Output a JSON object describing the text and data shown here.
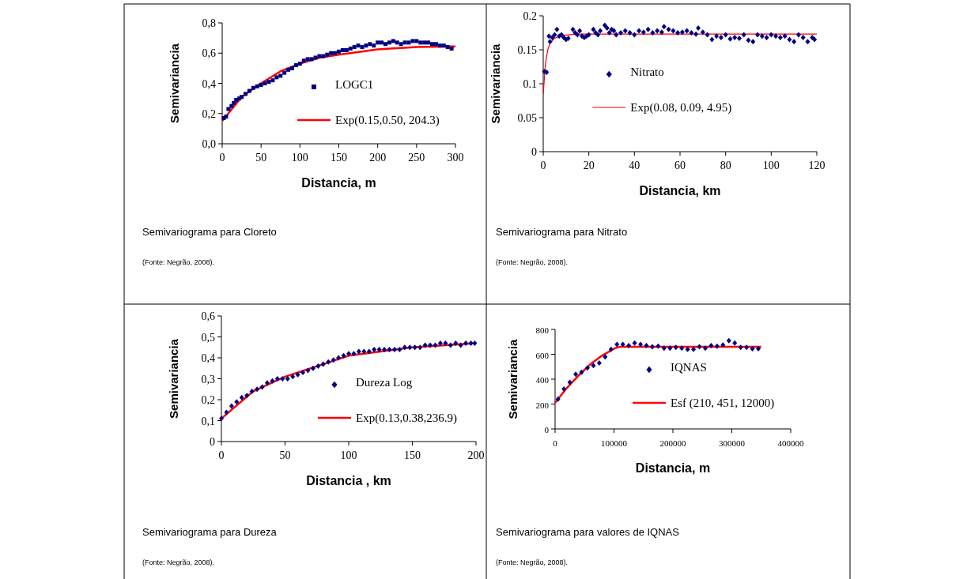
{
  "chart_data": [
    {
      "type": "scatter",
      "xlabel": "Distancia, m",
      "ylabel": "Semivariancia",
      "xlim": [
        0,
        300
      ],
      "ylim": [
        0,
        0.8
      ],
      "xticks": [
        0,
        50,
        100,
        150,
        200,
        250,
        300
      ],
      "yticks": [
        {
          "value": 0,
          "label": "0,0"
        },
        {
          "value": 0.2,
          "label": "0,2"
        },
        {
          "value": 0.4,
          "label": "0,4"
        },
        {
          "value": 0.6,
          "label": "0,6"
        },
        {
          "value": 0.8,
          "label": "0,8"
        }
      ],
      "legend": "bottom right",
      "annotations": [
        "Semivariograma para Cloreto",
        "(Fonte: Negrão, 2008)."
      ],
      "series": [
        {
          "name": "LOGC1",
          "marker": "square",
          "color": "#000080",
          "x": [
            2,
            5,
            8,
            12,
            15,
            18,
            22,
            25,
            30,
            35,
            40,
            45,
            50,
            55,
            60,
            65,
            70,
            75,
            80,
            85,
            90,
            95,
            100,
            105,
            110,
            115,
            120,
            125,
            130,
            135,
            140,
            145,
            150,
            155,
            160,
            165,
            170,
            175,
            180,
            185,
            190,
            195,
            200,
            205,
            210,
            215,
            220,
            225,
            230,
            235,
            240,
            245,
            250,
            255,
            260,
            265,
            270,
            275,
            280,
            285,
            290,
            295
          ],
          "values": [
            0.17,
            0.18,
            0.23,
            0.25,
            0.27,
            0.29,
            0.3,
            0.31,
            0.33,
            0.35,
            0.37,
            0.38,
            0.39,
            0.4,
            0.41,
            0.42,
            0.44,
            0.45,
            0.47,
            0.49,
            0.5,
            0.52,
            0.53,
            0.55,
            0.56,
            0.56,
            0.57,
            0.58,
            0.58,
            0.59,
            0.6,
            0.6,
            0.61,
            0.62,
            0.62,
            0.63,
            0.64,
            0.65,
            0.64,
            0.65,
            0.66,
            0.65,
            0.67,
            0.67,
            0.66,
            0.67,
            0.68,
            0.67,
            0.66,
            0.67,
            0.67,
            0.68,
            0.68,
            0.67,
            0.67,
            0.67,
            0.66,
            0.66,
            0.65,
            0.65,
            0.64,
            0.63
          ]
        },
        {
          "name": "Exp(0.15,0.50, 204.3)",
          "type": "line",
          "color": "#ff0000",
          "x": [
            0,
            25,
            50,
            75,
            100,
            125,
            150,
            200,
            250,
            300
          ],
          "values": [
            0.15,
            0.31,
            0.4,
            0.48,
            0.53,
            0.57,
            0.59,
            0.625,
            0.64,
            0.645
          ]
        }
      ]
    },
    {
      "type": "scatter",
      "xlabel": "Distancia, km",
      "ylabel": "Semivariancia",
      "xlim": [
        0,
        120
      ],
      "ylim": [
        0,
        0.2
      ],
      "xticks": [
        0,
        20,
        40,
        60,
        80,
        100,
        120
      ],
      "yticks": [
        0,
        0.05,
        0.1,
        0.15,
        0.2
      ],
      "legend": "left",
      "annotations": [
        "Semivariograma para Nitrato",
        "(Fonte: Negrão, 2008)."
      ],
      "series": [
        {
          "name": "Nitrato",
          "marker": "diamond",
          "color": "#000080",
          "x": [
            0.5,
            1.5,
            2.5,
            3,
            4,
            5,
            6,
            7,
            8,
            9,
            10,
            11,
            13,
            14,
            15,
            16,
            17,
            18,
            19,
            20,
            22,
            23,
            24,
            25,
            27,
            28,
            29,
            30,
            31,
            32,
            34,
            36,
            38,
            40,
            42,
            44,
            46,
            48,
            50,
            52,
            53,
            55,
            57,
            59,
            61,
            63,
            65,
            67,
            68,
            70,
            72,
            74,
            76,
            78,
            80,
            82,
            84,
            86,
            88,
            90,
            92,
            94,
            96,
            98,
            100,
            102,
            104,
            106,
            108,
            110,
            112,
            114,
            116,
            118,
            119
          ],
          "values": [
            0.118,
            0.117,
            0.17,
            0.162,
            0.168,
            0.172,
            0.18,
            0.17,
            0.172,
            0.168,
            0.165,
            0.167,
            0.18,
            0.175,
            0.172,
            0.178,
            0.17,
            0.168,
            0.17,
            0.172,
            0.18,
            0.175,
            0.172,
            0.178,
            0.186,
            0.182,
            0.175,
            0.18,
            0.178,
            0.172,
            0.175,
            0.178,
            0.175,
            0.172,
            0.178,
            0.176,
            0.18,
            0.175,
            0.178,
            0.176,
            0.184,
            0.18,
            0.178,
            0.175,
            0.176,
            0.178,
            0.175,
            0.173,
            0.182,
            0.176,
            0.172,
            0.165,
            0.17,
            0.168,
            0.172,
            0.166,
            0.168,
            0.167,
            0.172,
            0.164,
            0.162,
            0.172,
            0.17,
            0.168,
            0.172,
            0.17,
            0.168,
            0.17,
            0.165,
            0.162,
            0.172,
            0.168,
            0.162,
            0.168,
            0.165
          ]
        },
        {
          "name": "Exp(0.08, 0.09, 4.95)",
          "type": "line",
          "color": "#ff0000",
          "x": [
            0,
            1,
            2,
            3,
            5,
            8,
            15,
            120
          ],
          "values": [
            0.085,
            0.13,
            0.15,
            0.16,
            0.167,
            0.171,
            0.173,
            0.173
          ]
        }
      ]
    },
    {
      "type": "scatter",
      "xlabel": "Distancia , km",
      "ylabel": "Semivariancia",
      "xlim": [
        0,
        200
      ],
      "ylim": [
        0,
        0.6
      ],
      "xticks": [
        0,
        50,
        100,
        150,
        200
      ],
      "yticks": [
        0,
        {
          "value": 0.1,
          "label": "0,1"
        },
        {
          "value": 0.2,
          "label": "0,2"
        },
        {
          "value": 0.3,
          "label": "0,3"
        },
        {
          "value": 0.4,
          "label": "0,4"
        },
        {
          "value": 0.5,
          "label": "0,5"
        },
        {
          "value": 0.6,
          "label": "0,6"
        }
      ],
      "legend": "bottom right",
      "annotations": [
        "Semivariograma para Dureza",
        "(Fonte: Negrão, 2008)."
      ],
      "series": [
        {
          "name": "Dureza Log",
          "marker": "diamond",
          "color": "#000080",
          "x": [
            0,
            4,
            8,
            12,
            16,
            20,
            24,
            28,
            32,
            36,
            40,
            44,
            48,
            52,
            56,
            60,
            64,
            68,
            72,
            76,
            80,
            84,
            88,
            92,
            96,
            100,
            104,
            108,
            112,
            116,
            120,
            124,
            128,
            132,
            136,
            140,
            144,
            148,
            152,
            156,
            160,
            164,
            168,
            172,
            176,
            180,
            184,
            188,
            192,
            196,
            199
          ],
          "values": [
            0.11,
            0.14,
            0.17,
            0.19,
            0.21,
            0.22,
            0.24,
            0.25,
            0.26,
            0.28,
            0.29,
            0.3,
            0.3,
            0.3,
            0.31,
            0.32,
            0.33,
            0.34,
            0.35,
            0.36,
            0.37,
            0.38,
            0.39,
            0.4,
            0.41,
            0.42,
            0.42,
            0.43,
            0.43,
            0.43,
            0.44,
            0.44,
            0.44,
            0.44,
            0.44,
            0.44,
            0.45,
            0.45,
            0.45,
            0.45,
            0.46,
            0.46,
            0.46,
            0.47,
            0.47,
            0.46,
            0.47,
            0.46,
            0.47,
            0.47,
            0.47
          ]
        },
        {
          "name": "Exp(0.13,0.38,236.9)",
          "type": "line",
          "color": "#ff0000",
          "x": [
            0,
            25,
            50,
            75,
            100,
            125,
            150,
            200
          ],
          "values": [
            0.11,
            0.24,
            0.31,
            0.36,
            0.41,
            0.43,
            0.45,
            0.47
          ]
        }
      ]
    },
    {
      "type": "scatter",
      "xlabel": "Distancia, m",
      "ylabel": "Semivariancia",
      "xlim": [
        0,
        400000
      ],
      "ylim": [
        0,
        800
      ],
      "xticks": [
        0,
        100000,
        200000,
        300000,
        400000
      ],
      "yticks": [
        0,
        200,
        400,
        600,
        800
      ],
      "legend": "right",
      "annotations": [
        "Semivariograma para valores de IQNAS",
        "(Fonte: Negrão, 2008)."
      ],
      "series": [
        {
          "name": "IQNAS",
          "marker": "diamond",
          "color": "#000080",
          "x": [
            5000,
            15000,
            25000,
            35000,
            45000,
            55000,
            65000,
            75000,
            85000,
            95000,
            105000,
            115000,
            125000,
            135000,
            145000,
            155000,
            165000,
            175000,
            185000,
            195000,
            205000,
            215000,
            225000,
            235000,
            245000,
            255000,
            265000,
            275000,
            285000,
            295000,
            305000,
            315000,
            325000,
            335000,
            345000
          ],
          "values": [
            240,
            320,
            375,
            440,
            455,
            490,
            510,
            530,
            580,
            640,
            680,
            680,
            670,
            690,
            680,
            670,
            660,
            665,
            650,
            650,
            655,
            650,
            640,
            640,
            660,
            650,
            670,
            665,
            675,
            710,
            690,
            655,
            655,
            645,
            645
          ]
        },
        {
          "name": "Esf (210, 451, 12000)",
          "type": "line",
          "color": "#ff0000",
          "x": [
            0,
            20000,
            40000,
            60000,
            80000,
            100000,
            110000,
            120000,
            350000
          ],
          "values": [
            210,
            330,
            430,
            520,
            590,
            645,
            661,
            661,
            661
          ]
        }
      ]
    }
  ]
}
